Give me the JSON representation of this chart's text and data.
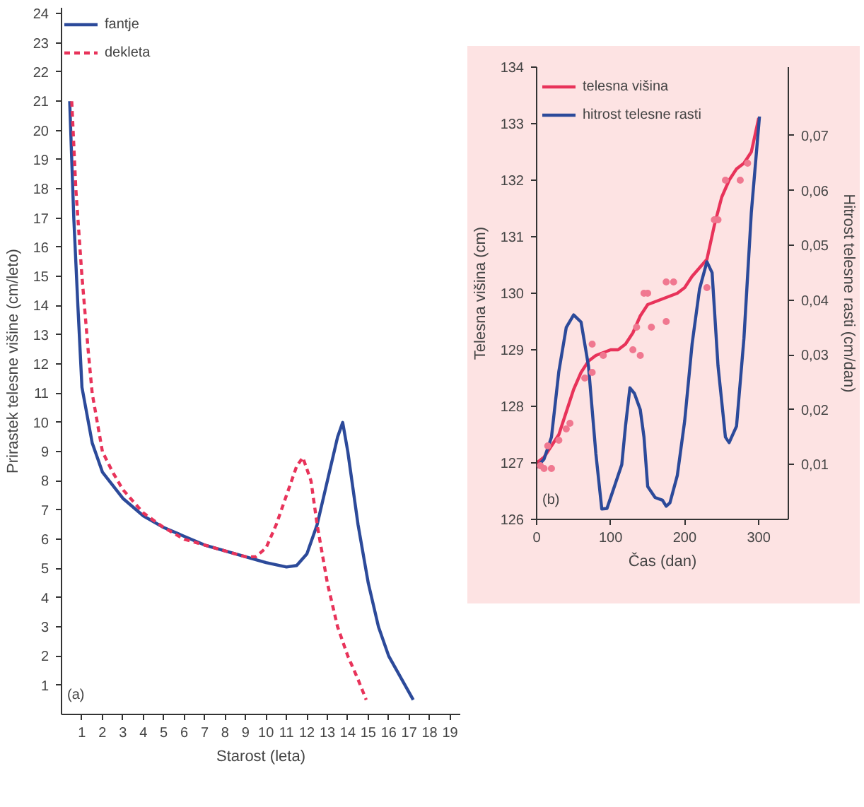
{
  "chart_data": [
    {
      "type": "line",
      "xlabel": "Starost (leta)",
      "ylabel": "Prirastek telesne višine (cm/leto)",
      "xlim": [
        0,
        19.5
      ],
      "ylim": [
        0,
        24.2
      ],
      "xticks": [
        1,
        2,
        3,
        4,
        5,
        6,
        7,
        8,
        9,
        10,
        11,
        12,
        13,
        14,
        15,
        16,
        17,
        18,
        19
      ],
      "yticks": [
        1,
        2,
        3,
        4,
        5,
        6,
        7,
        8,
        9,
        10,
        11,
        12,
        13,
        14,
        15,
        16,
        17,
        18,
        19,
        20,
        21,
        22,
        23,
        24
      ],
      "grid": false,
      "legend": "top left",
      "annotations": [
        "(a)"
      ],
      "series": [
        {
          "name": "fantje",
          "color": "#2c4a9a",
          "line_style": "solid",
          "x": [
            0.4,
            0.6,
            0.8,
            1,
            1.5,
            2,
            3,
            4,
            5,
            6,
            7,
            8,
            9,
            10,
            11,
            11.5,
            12,
            12.5,
            13,
            13.5,
            13.75,
            14,
            14.5,
            15,
            15.5,
            16,
            17.2
          ],
          "values": [
            21,
            17,
            14,
            11.2,
            9.3,
            8.3,
            7.4,
            6.8,
            6.4,
            6.1,
            5.8,
            5.6,
            5.4,
            5.2,
            5.05,
            5.1,
            5.5,
            6.5,
            8,
            9.5,
            10,
            9,
            6.5,
            4.5,
            3,
            2,
            0.5
          ]
        },
        {
          "name": "dekleta",
          "color": "#e8335a",
          "line_style": "dashed",
          "x": [
            0.5,
            0.7,
            1,
            1.3,
            1.5,
            2,
            2.5,
            3,
            4,
            5,
            6,
            7,
            8,
            9,
            9.5,
            10,
            10.5,
            11,
            11.5,
            11.8,
            12.2,
            12.5,
            13,
            13.5,
            14,
            14.5,
            14.9
          ],
          "values": [
            21,
            18,
            15,
            12.5,
            11,
            9,
            8.3,
            7.7,
            6.9,
            6.4,
            6.0,
            5.8,
            5.6,
            5.4,
            5.4,
            5.7,
            6.5,
            7.5,
            8.5,
            8.8,
            8,
            6.5,
            4.5,
            3,
            2,
            1.2,
            0.5
          ]
        }
      ]
    },
    {
      "type": "line",
      "xlabel": "Čas (dan)",
      "ylabel": "Telesna višina (cm)",
      "y2label": "Hitrost telesne rasti (cm/dan)",
      "xlim": [
        0,
        340
      ],
      "ylim": [
        126,
        134
      ],
      "y2lim": [
        0,
        0.0825
      ],
      "xticks": [
        0,
        100,
        200,
        300
      ],
      "yticks": [
        126,
        127,
        128,
        129,
        130,
        131,
        132,
        133,
        134
      ],
      "y2ticks": [
        {
          "value": 0.01,
          "label": "0,01"
        },
        {
          "value": 0.02,
          "label": "0,02"
        },
        {
          "value": 0.03,
          "label": "0,03"
        },
        {
          "value": 0.04,
          "label": "0,04"
        },
        {
          "value": 0.05,
          "label": "0,05"
        },
        {
          "value": 0.06,
          "label": "0,06"
        },
        {
          "value": 0.07,
          "label": "0,07"
        }
      ],
      "grid": false,
      "legend": "top left",
      "annotations": [
        "(b)"
      ],
      "series": [
        {
          "name": "telesna višina",
          "color": "#e8335a",
          "x": [
            0,
            10,
            20,
            30,
            40,
            50,
            60,
            70,
            80,
            90,
            100,
            110,
            120,
            130,
            140,
            150,
            160,
            170,
            180,
            190,
            200,
            210,
            220,
            230,
            240,
            250,
            260,
            270,
            280,
            290,
            300
          ],
          "values": [
            127,
            127.1,
            127.3,
            127.5,
            127.9,
            128.3,
            128.6,
            128.8,
            128.9,
            128.95,
            129,
            129,
            129.1,
            129.3,
            129.6,
            129.8,
            129.85,
            129.9,
            129.95,
            130,
            130.1,
            130.3,
            130.45,
            130.6,
            131.2,
            131.7,
            132,
            132.2,
            132.3,
            132.5,
            133.1
          ]
        },
        {
          "type": "scatter",
          "marker": "circle",
          "color": "#f07890",
          "x": [
            5,
            10,
            15,
            20,
            30,
            40,
            45,
            65,
            75,
            75,
            90,
            130,
            135,
            140,
            145,
            150,
            155,
            175,
            175,
            185,
            230,
            240,
            245,
            255,
            275,
            285
          ],
          "values": [
            126.95,
            126.9,
            127.3,
            126.9,
            127.4,
            127.6,
            127.7,
            128.5,
            128.6,
            129.1,
            128.9,
            129.0,
            129.4,
            128.9,
            130.0,
            130.0,
            129.4,
            129.5,
            130.2,
            130.2,
            130.1,
            131.3,
            131.3,
            132,
            132.0,
            132.3
          ]
        },
        {
          "name": "hitrost telesne rasti",
          "color": "#2c4a9a",
          "axis": "y2",
          "x": [
            0,
            10,
            20,
            30,
            40,
            50,
            60,
            70,
            80,
            88,
            95,
            105,
            115,
            120,
            126,
            132,
            140,
            145,
            150,
            160,
            170,
            175,
            180,
            190,
            200,
            210,
            220,
            230,
            237,
            245,
            255,
            260,
            270,
            280,
            290,
            301
          ],
          "values": [
            0.0095,
            0.011,
            0.015,
            0.027,
            0.035,
            0.0373,
            0.036,
            0.028,
            0.012,
            0.0019,
            0.002,
            0.006,
            0.01,
            0.017,
            0.024,
            0.023,
            0.02,
            0.015,
            0.006,
            0.004,
            0.0035,
            0.0024,
            0.003,
            0.008,
            0.018,
            0.032,
            0.042,
            0.047,
            0.045,
            0.028,
            0.015,
            0.014,
            0.017,
            0.033,
            0.056,
            0.0735
          ]
        }
      ]
    }
  ]
}
